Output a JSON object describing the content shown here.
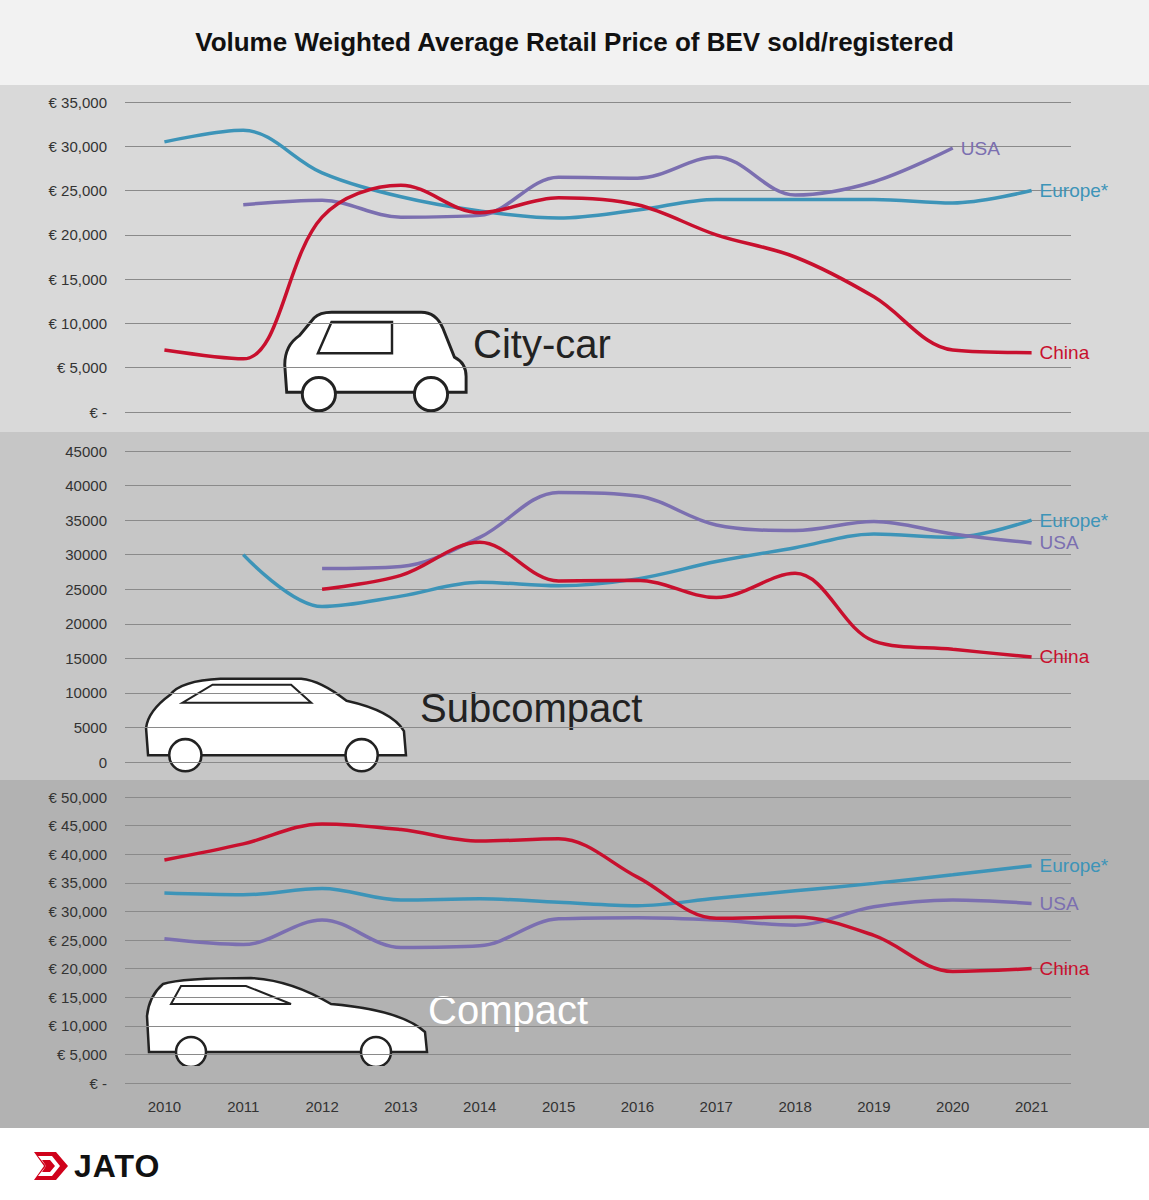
{
  "title": "Volume Weighted Average Retail Price of BEV sold/registered",
  "logo": "JATO",
  "chart_data": [
    {
      "type": "line",
      "title": "City-car",
      "categories": [
        2010,
        2011,
        2012,
        2013,
        2014,
        2015,
        2016,
        2017,
        2018,
        2019,
        2020,
        2021
      ],
      "ylim": [
        0,
        35000
      ],
      "yticks": [
        {
          "value": 0,
          "label": "€ -"
        },
        {
          "value": 5000,
          "label": "€ 5,000"
        },
        {
          "value": 10000,
          "label": "€ 10,000"
        },
        {
          "value": 15000,
          "label": "€ 15,000"
        },
        {
          "value": 20000,
          "label": "€ 20,000"
        },
        {
          "value": 25000,
          "label": "€ 25,000"
        },
        {
          "value": 30000,
          "label": "€ 30,000"
        },
        {
          "value": 35000,
          "label": "€ 35,000"
        }
      ],
      "grid": true,
      "tick_labels": "y",
      "series": [
        {
          "name": "Europe*",
          "color": "#3d94b8",
          "values": [
            30500,
            31800,
            27000,
            24300,
            22700,
            21900,
            22800,
            24000,
            24000,
            24000,
            23600,
            25000
          ]
        },
        {
          "name": "USA",
          "color": "#7b6fb0",
          "values": [
            null,
            23400,
            23900,
            22000,
            22200,
            26500,
            26400,
            28800,
            24500,
            26000,
            29800,
            null
          ]
        },
        {
          "name": "China",
          "color": "#c8102e",
          "values": [
            7000,
            6000,
            22000,
            25600,
            22500,
            24200,
            23400,
            20000,
            17500,
            13000,
            7000,
            6700
          ]
        }
      ]
    },
    {
      "type": "line",
      "title": "Subcompact",
      "categories": [
        2010,
        2011,
        2012,
        2013,
        2014,
        2015,
        2016,
        2017,
        2018,
        2019,
        2020,
        2021
      ],
      "ylim": [
        0,
        45000
      ],
      "yticks": [
        0,
        5000,
        10000,
        15000,
        20000,
        25000,
        30000,
        35000,
        40000,
        45000
      ],
      "grid": true,
      "tick_labels": "y",
      "series": [
        {
          "name": "Europe*",
          "color": "#3d94b8",
          "values": [
            null,
            30000,
            22500,
            24000,
            26000,
            25500,
            26500,
            29000,
            31000,
            33000,
            32500,
            35000
          ]
        },
        {
          "name": "USA",
          "color": "#7b6fb0",
          "values": [
            null,
            null,
            28000,
            28300,
            32500,
            39000,
            38500,
            34300,
            33500,
            34800,
            33000,
            31700
          ]
        },
        {
          "name": "China",
          "color": "#c8102e",
          "values": [
            null,
            null,
            25000,
            27000,
            31800,
            26200,
            26300,
            23800,
            27300,
            17500,
            16300,
            15200
          ]
        }
      ]
    },
    {
      "type": "line",
      "title": "Compact",
      "categories": [
        2010,
        2011,
        2012,
        2013,
        2014,
        2015,
        2016,
        2017,
        2018,
        2019,
        2020,
        2021
      ],
      "ylim": [
        0,
        50000
      ],
      "yticks": [
        {
          "value": 0,
          "label": "€ -"
        },
        {
          "value": 5000,
          "label": "€ 5,000"
        },
        {
          "value": 10000,
          "label": "€ 10,000"
        },
        {
          "value": 15000,
          "label": "€ 15,000"
        },
        {
          "value": 20000,
          "label": "€ 20,000"
        },
        {
          "value": 25000,
          "label": "€ 25,000"
        },
        {
          "value": 30000,
          "label": "€ 30,000"
        },
        {
          "value": 35000,
          "label": "€ 35,000"
        },
        {
          "value": 40000,
          "label": "€ 40,000"
        },
        {
          "value": 45000,
          "label": "€ 45,000"
        },
        {
          "value": 50000,
          "label": "€ 50,000"
        }
      ],
      "grid": true,
      "tick_labels": true,
      "series": [
        {
          "name": "Europe*",
          "color": "#3d94b8",
          "values": [
            33200,
            32900,
            34000,
            32000,
            32200,
            31600,
            31000,
            32300,
            33600,
            34900,
            36400,
            38000
          ]
        },
        {
          "name": "USA",
          "color": "#7b6fb0",
          "values": [
            25200,
            24200,
            28500,
            23700,
            24000,
            28700,
            28900,
            28500,
            27600,
            30800,
            32000,
            31400
          ]
        },
        {
          "name": "China",
          "color": "#c8102e",
          "values": [
            39000,
            41800,
            45300,
            44300,
            42300,
            42700,
            36000,
            28800,
            29000,
            25800,
            19500,
            20000
          ]
        }
      ]
    }
  ]
}
